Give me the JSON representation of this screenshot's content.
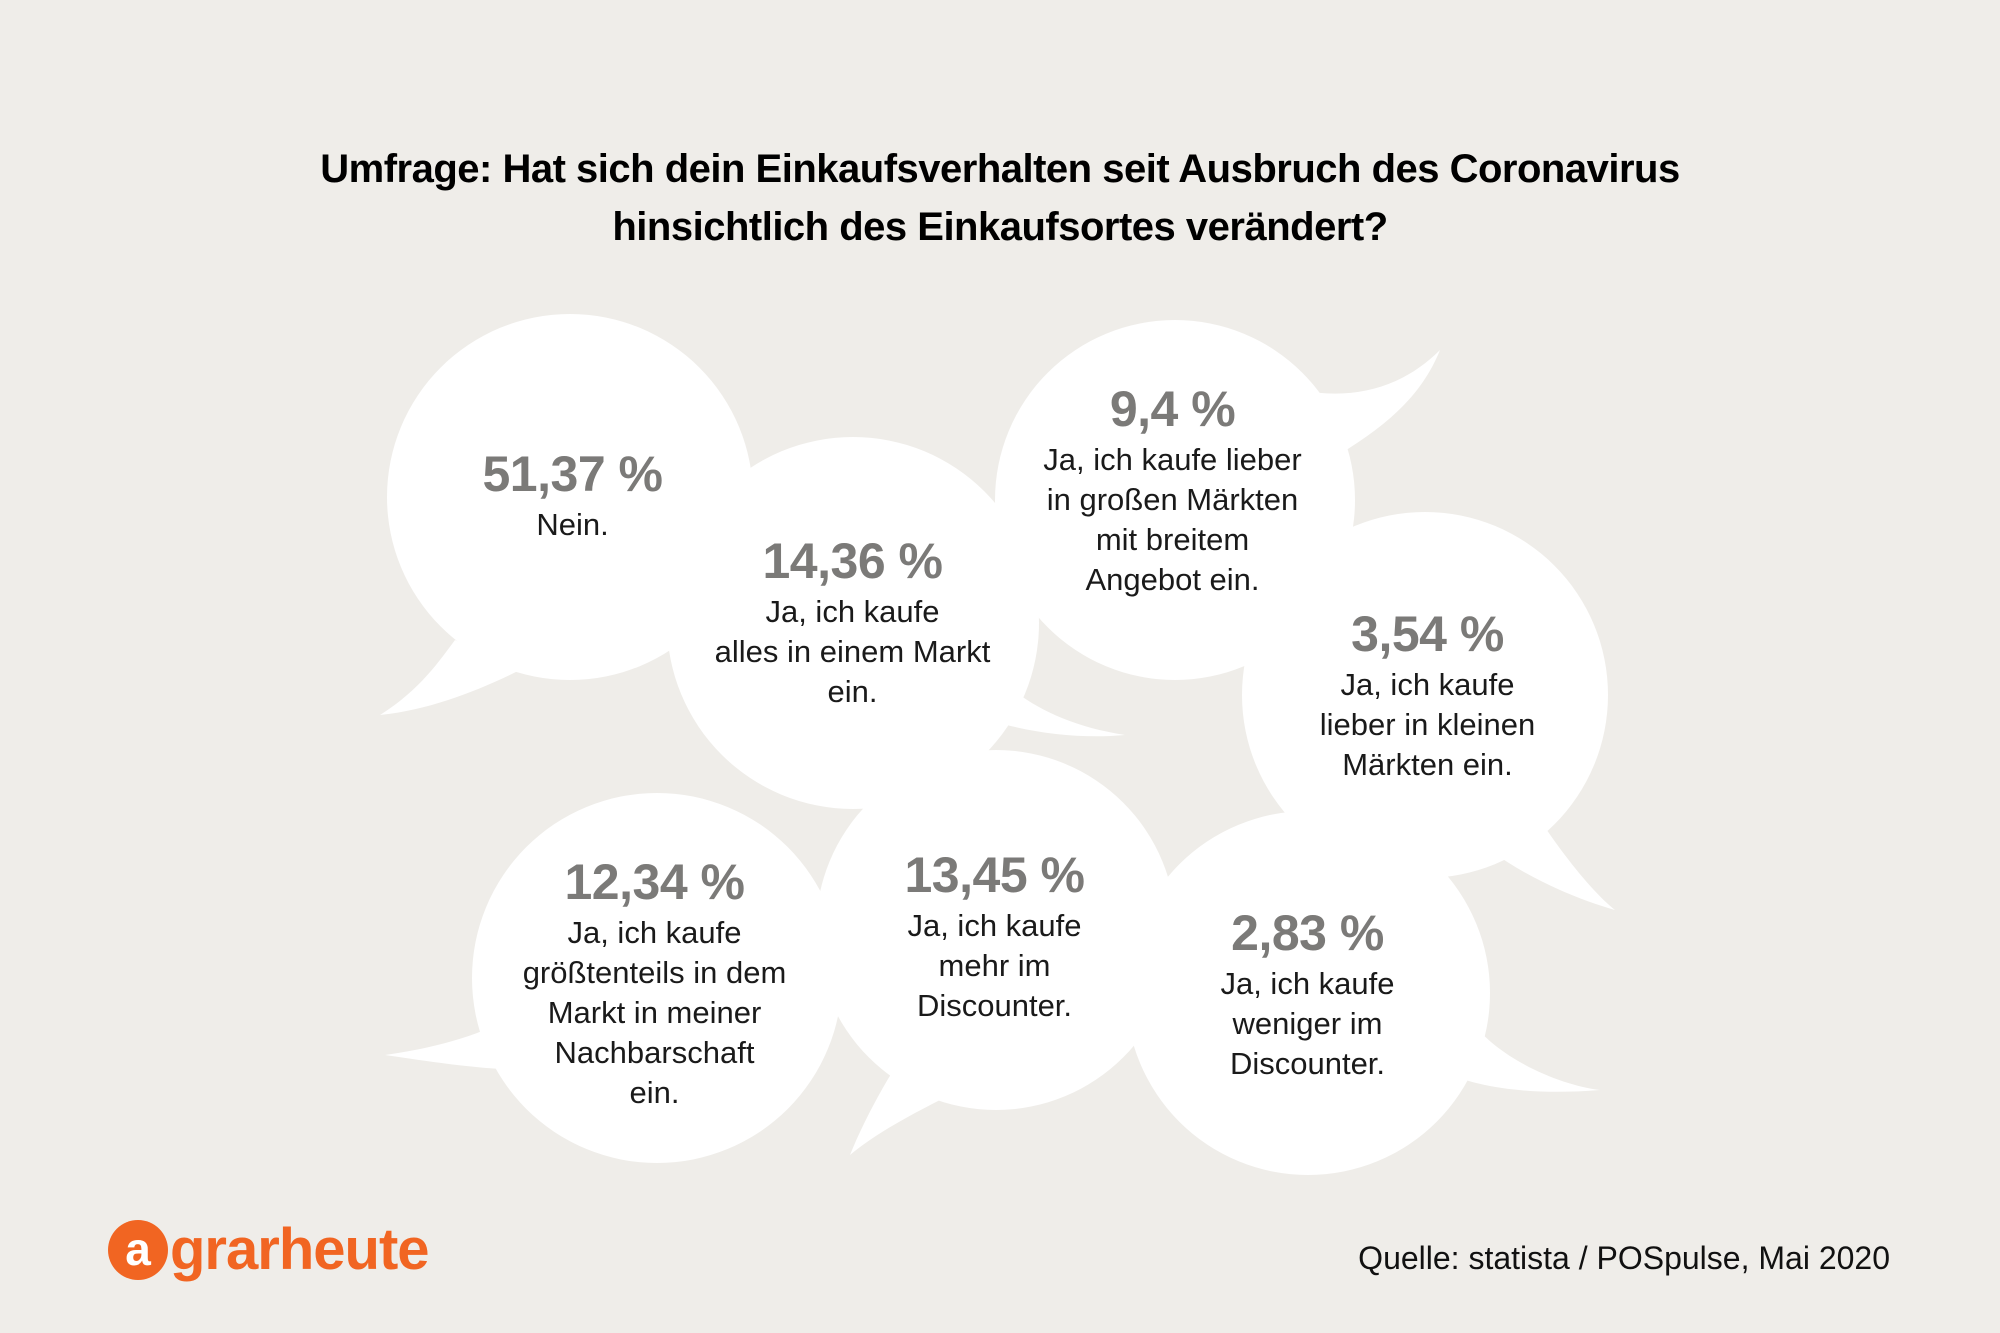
{
  "title": {
    "line1": "Umfrage: Hat sich dein Einkaufsverhalten seit Ausbruch des Coronavirus",
    "line2": "hinsichtlich des Einkaufsortes verändert?"
  },
  "answers": [
    {
      "percent": "51,37 %",
      "lines": [
        "Nein."
      ]
    },
    {
      "percent": "14,36 %",
      "lines": [
        "Ja, ich kaufe",
        "alles in einem Markt",
        "ein."
      ]
    },
    {
      "percent": "9,4 %",
      "lines": [
        "Ja, ich kaufe lieber",
        "in großen Märkten",
        "mit breitem",
        "Angebot ein."
      ]
    },
    {
      "percent": "3,54 %",
      "lines": [
        "Ja, ich kaufe",
        "lieber in kleinen",
        "Märkten ein."
      ]
    },
    {
      "percent": "12,34 %",
      "lines": [
        "Ja, ich kaufe",
        "größtenteils in dem",
        "Markt in meiner",
        "Nachbarschaft",
        "ein."
      ]
    },
    {
      "percent": "13,45 %",
      "lines": [
        "Ja, ich kaufe",
        "mehr im",
        "Discounter."
      ]
    },
    {
      "percent": "2,83 %",
      "lines": [
        "Ja, ich kaufe",
        "weniger im",
        "Discounter."
      ]
    }
  ],
  "logo": {
    "mark": "a",
    "text": "grarheute"
  },
  "source": "Quelle: statista / POSpulse, Mai 2020",
  "colors": {
    "background": "#efede9",
    "bubble": "#ffffff",
    "percent": "#7b7a78",
    "brand": "#f16522"
  }
}
